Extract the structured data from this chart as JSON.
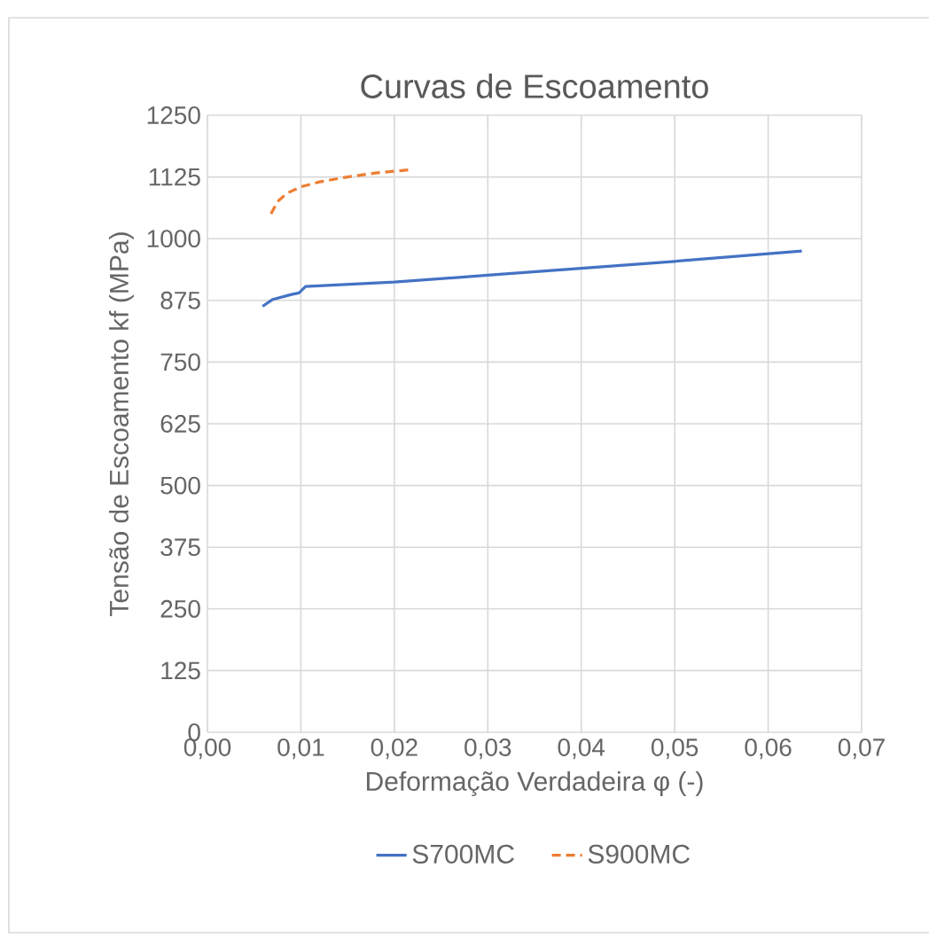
{
  "chart_data": {
    "type": "line",
    "title": "Curvas de Escoamento",
    "xlabel": "Deformação Verdadeira φ  (-)",
    "ylabel": "Tensão de Escoamento kf  (MPa)",
    "xlim": [
      0,
      0.07
    ],
    "xticks": [
      {
        "value": 0,
        "label": "0,00"
      },
      {
        "value": 0.01,
        "label": "0,01"
      },
      {
        "value": 0.02,
        "label": "0,02"
      },
      {
        "value": 0.03,
        "label": "0,03"
      },
      {
        "value": 0.04,
        "label": "0,04"
      },
      {
        "value": 0.05,
        "label": "0,05"
      },
      {
        "value": 0.06,
        "label": "0,06"
      },
      {
        "value": 0.07,
        "label": "0,07"
      }
    ],
    "ylim": [
      0,
      1250
    ],
    "yticks": [
      0,
      125,
      250,
      375,
      500,
      625,
      750,
      875,
      1000,
      1125,
      1250
    ],
    "grid": true,
    "legend": "bottom",
    "marker": "none",
    "series": [
      {
        "name": "S700MC",
        "color": "#4472c4",
        "line_style": "solid",
        "x": [
          0.0059,
          0.007,
          0.009,
          0.0098,
          0.0105,
          0.02,
          0.03,
          0.04,
          0.05,
          0.0636
        ],
        "values": [
          863,
          877,
          887,
          890,
          903,
          912,
          926,
          940,
          954,
          975
        ]
      },
      {
        "name": "S900MC",
        "color": "#ed7d31",
        "line_style": "dashed",
        "x": [
          0.0068,
          0.0075,
          0.0085,
          0.01,
          0.012,
          0.015,
          0.018,
          0.0218
        ],
        "values": [
          1050,
          1075,
          1092,
          1105,
          1115,
          1125,
          1133,
          1140
        ]
      }
    ]
  }
}
